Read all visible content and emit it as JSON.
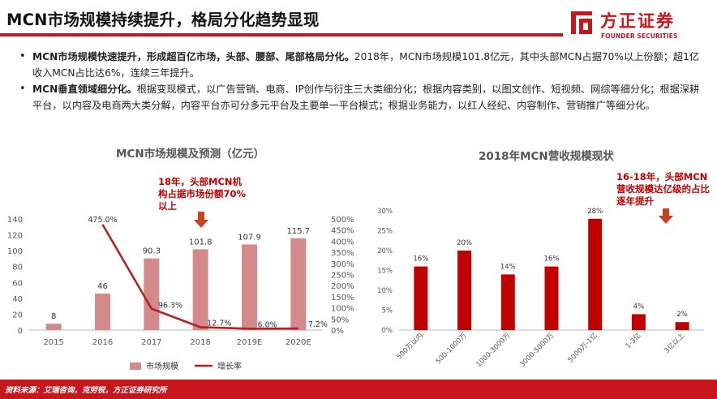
{
  "header": {
    "title": "MCN市场规模持续提升，格局分化趋势显现",
    "logo_cn": "方正证券",
    "logo_en": "FOUNDER SECURITIES"
  },
  "bullets": [
    {
      "bold": "MCN市场规模快速提升，形成超百亿市场，头部、腰部、尾部格局分化。",
      "text": "2018年，MCN市场规模101.8亿元，其中头部MCN占据70%以上份额；超1亿收入MCN占比达6%，连续三年提升。"
    },
    {
      "bold": "MCN垂直领域细分化。",
      "text": "根据变现模式，以广告营销、电商、IP创作与衍生三大类细分化；根据内容类别，以图文创作、短视频、网综等细分化；根据深耕平台，以内容及电商两大类分解，内容平台亦可分多元平台及主要单一平台模式；根据业务能力，以红人经纪、内容制作、营销推广等细分化。"
    }
  ],
  "footer": {
    "source": "资料来源：艾瑞咨询，克劳锐，方正证券研究所"
  },
  "colors": {
    "brand": "#c8161d",
    "bar_left": "#d48a8a",
    "line": "#b22222",
    "bar_right": "#c00000",
    "annotation": "#c00000"
  },
  "chart_data": [
    {
      "type": "bar",
      "title": "MCN市场规模及预测（亿元）",
      "categories": [
        "2015",
        "2016",
        "2017",
        "2018",
        "2019E",
        "2020E"
      ],
      "series": [
        {
          "name": "市场规模",
          "type": "bar",
          "axis": "left",
          "values": [
            8,
            46,
            90.3,
            101.8,
            107.9,
            115.7
          ],
          "labels": [
            "8",
            "46",
            "90.3",
            "101.8",
            "107.9",
            "115.7"
          ]
        },
        {
          "name": "增长率",
          "type": "line",
          "axis": "right",
          "values": [
            null,
            475.0,
            96.3,
            12.7,
            6.0,
            7.2
          ],
          "labels": [
            "",
            "475.0%",
            "96.3%",
            "12.7%",
            "6.0%",
            "7.2%"
          ]
        }
      ],
      "y_left": {
        "range": [
          0,
          140
        ],
        "ticks": [
          "0",
          "20",
          "40",
          "60",
          "80",
          "100",
          "120",
          "140"
        ]
      },
      "y_right": {
        "range": [
          0,
          500
        ],
        "ticks": [
          "0%",
          "50%",
          "100%",
          "150%",
          "200%",
          "250%",
          "300%",
          "350%",
          "400%",
          "450%",
          "500%"
        ]
      },
      "annotation": "18年，头部MCN机构占据市场份额70%以上",
      "grid": false,
      "legend": "bottom"
    },
    {
      "type": "bar",
      "title": "2018年MCN营收规模现状",
      "categories": [
        "500万以内",
        "500-1000万",
        "1000-3000万",
        "3000-5000万",
        "5000万-1亿",
        "1-3亿",
        "3亿以上"
      ],
      "values": [
        16,
        20,
        14,
        16,
        28,
        4,
        2
      ],
      "labels": [
        "16%",
        "20%",
        "14%",
        "16%",
        "28%",
        "4%",
        "2%"
      ],
      "y_axis": {
        "range": [
          0,
          30
        ],
        "ticks": [
          "0%",
          "5%",
          "10%",
          "15%",
          "20%",
          "25%",
          "30%"
        ]
      },
      "annotation": "16-18年，头部MCN营收规模达亿级的占比逐年提升",
      "grid": false
    }
  ]
}
